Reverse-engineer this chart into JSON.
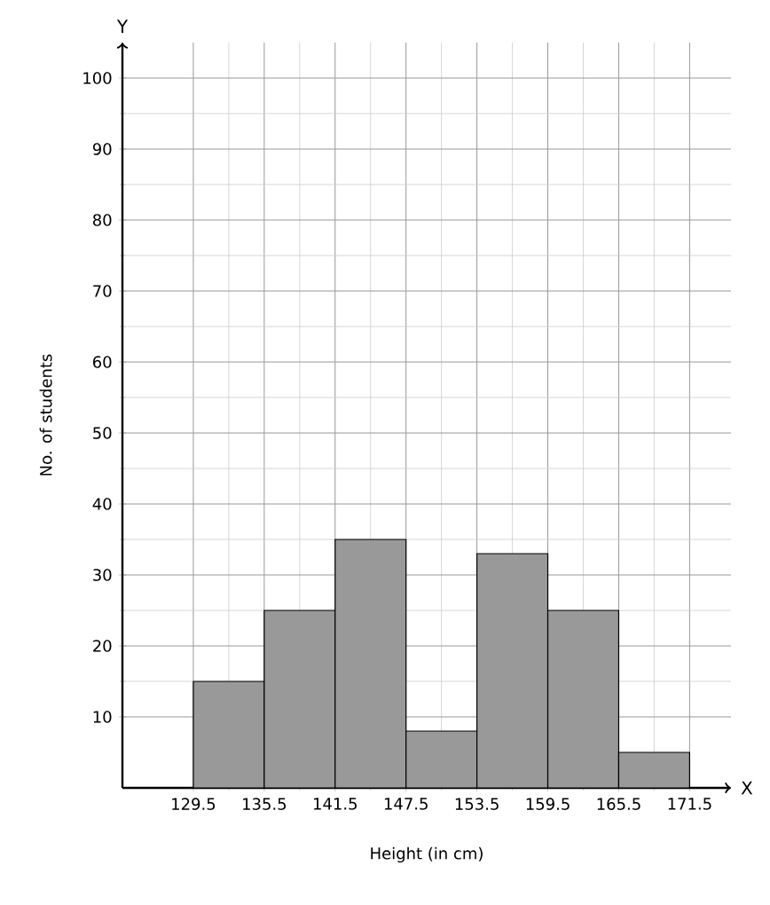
{
  "chart_data": {
    "type": "histogram",
    "xlabel": "Height (in cm)",
    "ylabel": "No. of students",
    "annotations": [
      "Y",
      "X"
    ],
    "bins": [
      129.5,
      135.5,
      141.5,
      147.5,
      153.5,
      159.5,
      165.5,
      171.5
    ],
    "values": [
      15,
      25,
      35,
      8,
      33,
      25,
      5
    ],
    "color": "#999999",
    "xlim": [
      123.5,
      175
    ],
    "ylim": [
      0,
      105
    ],
    "xticks": [
      129.5,
      135.5,
      141.5,
      147.5,
      153.5,
      159.5,
      165.5,
      171.5
    ],
    "yticks": [
      10,
      20,
      30,
      40,
      50,
      60,
      70,
      80,
      90,
      100
    ],
    "grid": true
  }
}
